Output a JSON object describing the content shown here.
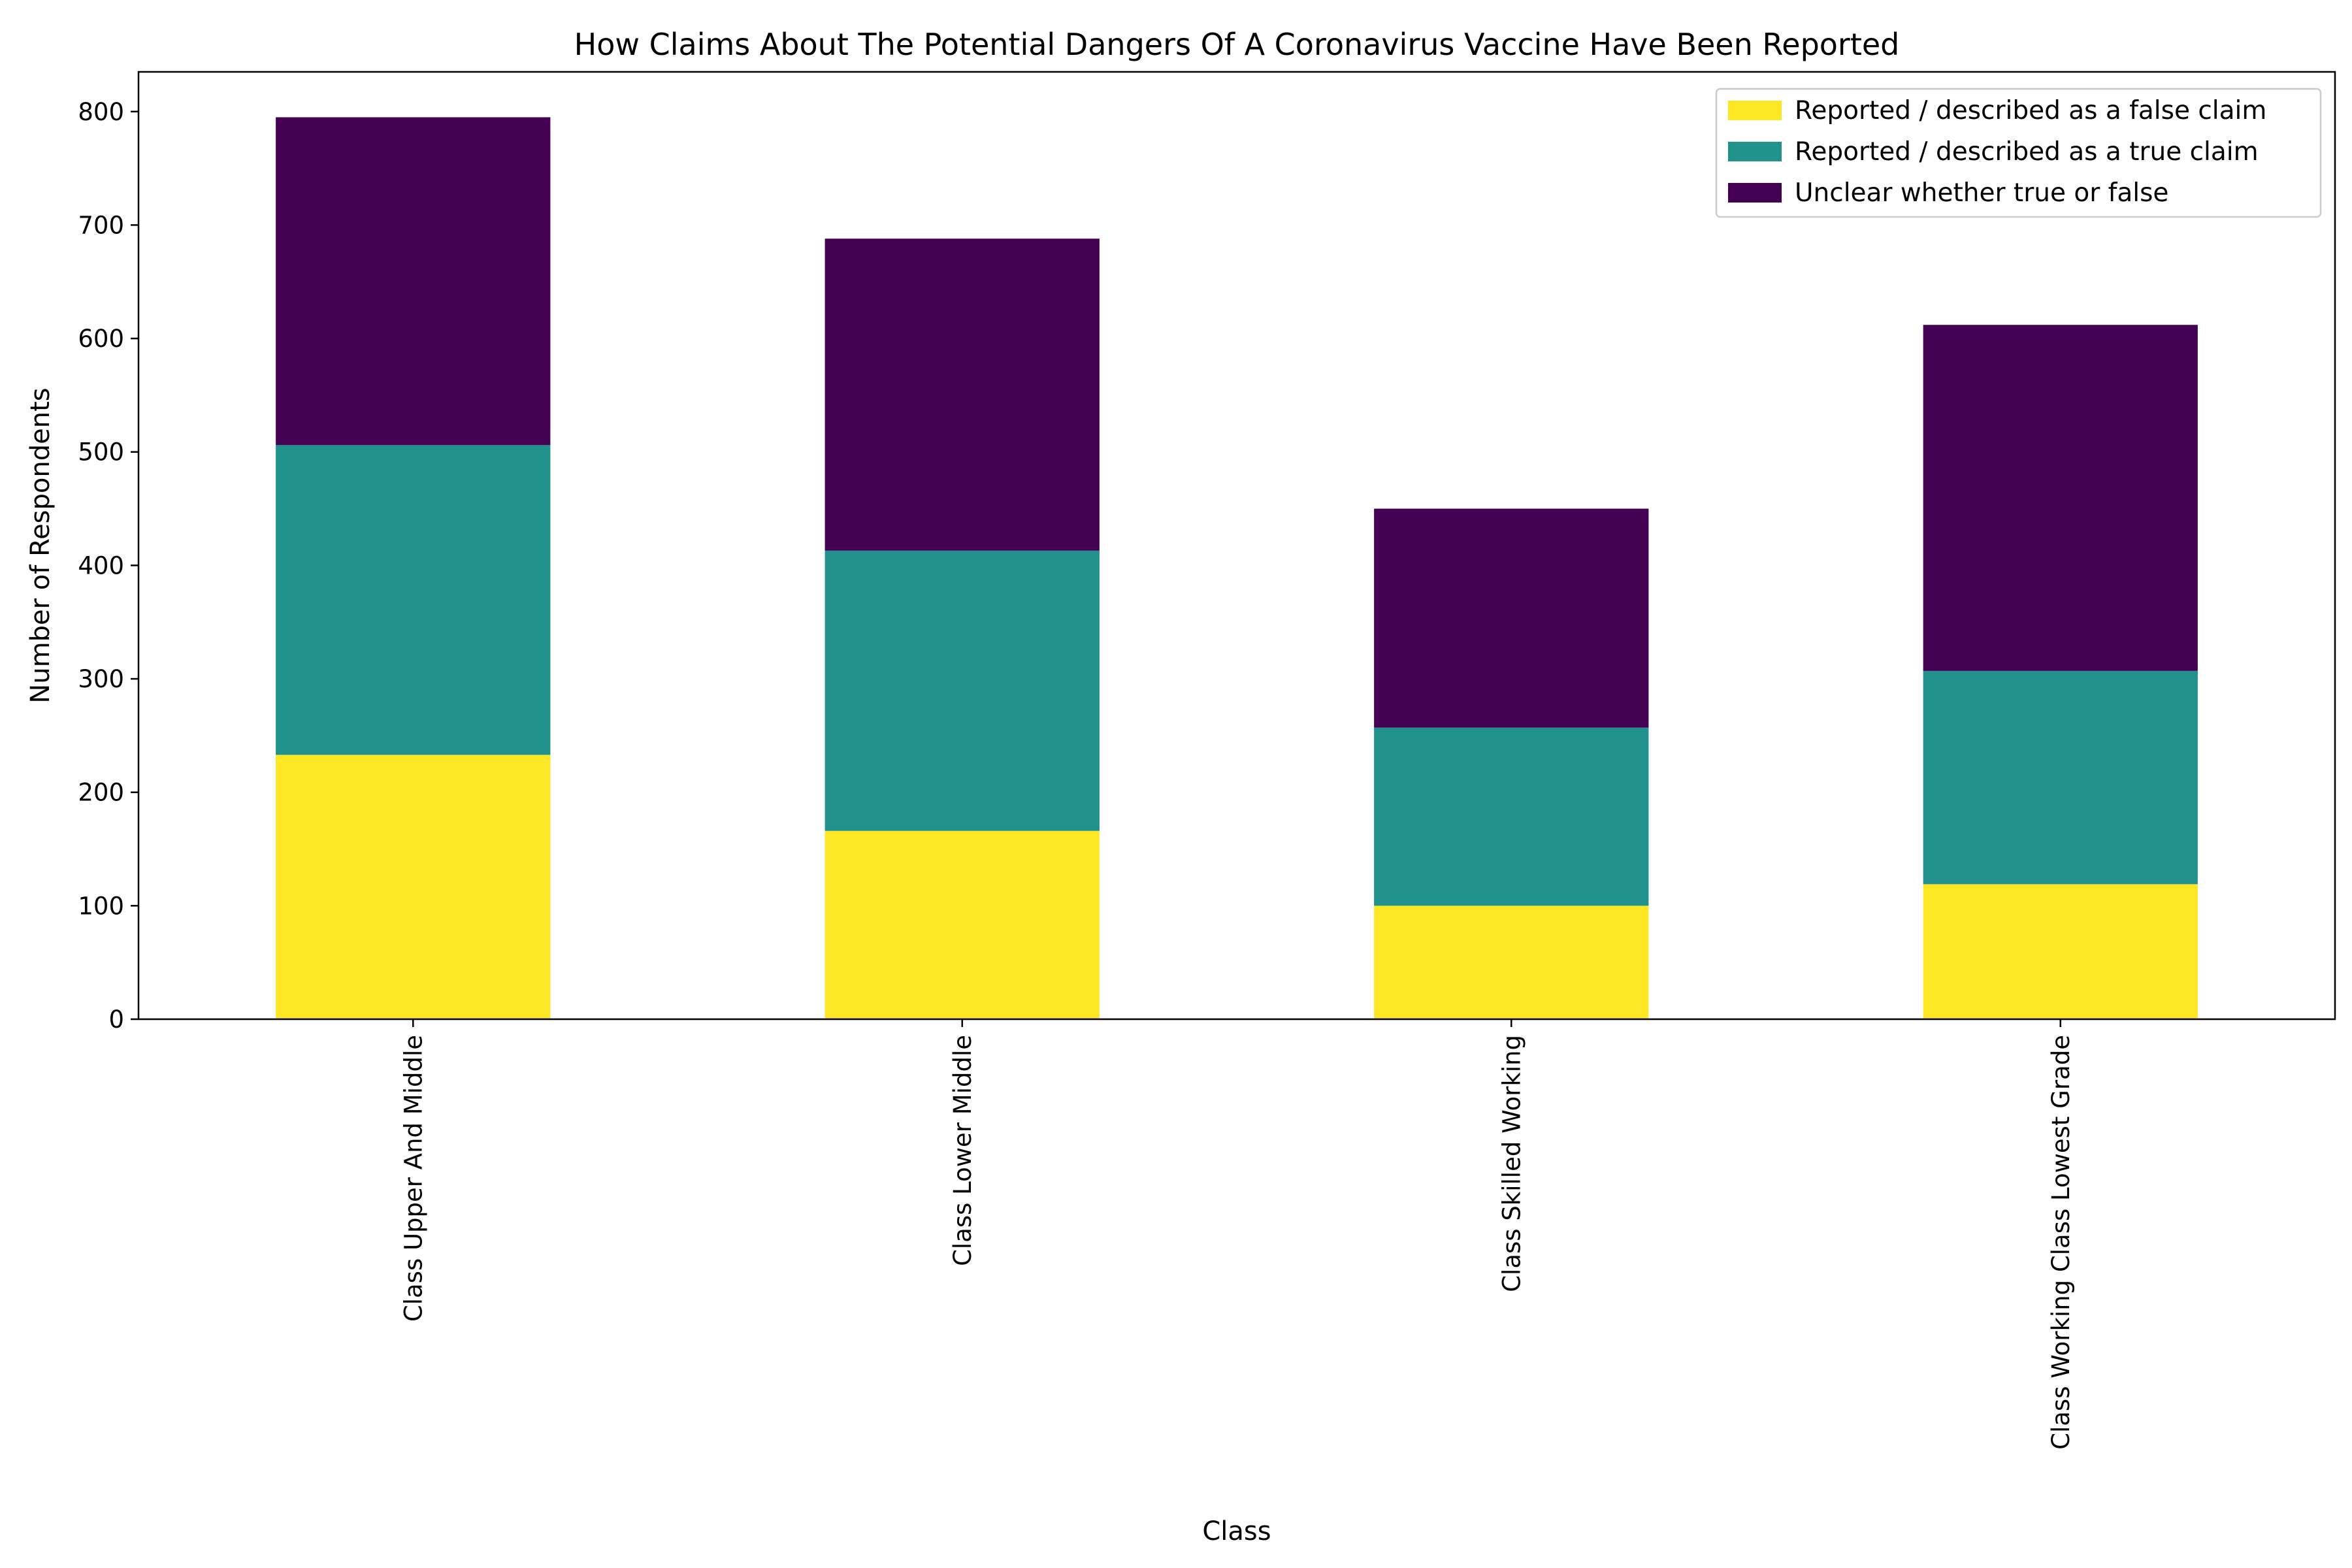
{
  "chart_data": {
    "type": "bar",
    "stacked": true,
    "title": "How Claims About The Potential Dangers Of A Coronavirus Vaccine Have Been Reported",
    "xlabel": "Class",
    "ylabel": "Number of Respondents",
    "ylim": [
      0,
      835
    ],
    "yticks": [
      0,
      100,
      200,
      300,
      400,
      500,
      600,
      700,
      800
    ],
    "grid": false,
    "legend_position": "top-right",
    "categories": [
      "Class Upper And Middle",
      "Class Lower Middle",
      "Class Skilled Working",
      "Class Working Class Lowest Grade"
    ],
    "series": [
      {
        "name": "Reported / described as a false claim",
        "color": "#fde725",
        "values": [
          233,
          166,
          100,
          119
        ]
      },
      {
        "name": "Reported / described as a true claim",
        "color": "#21918c",
        "values": [
          273,
          247,
          157,
          188
        ]
      },
      {
        "name": "Unclear whether true or false",
        "color": "#440154",
        "values": [
          289,
          275,
          193,
          305
        ]
      }
    ]
  }
}
